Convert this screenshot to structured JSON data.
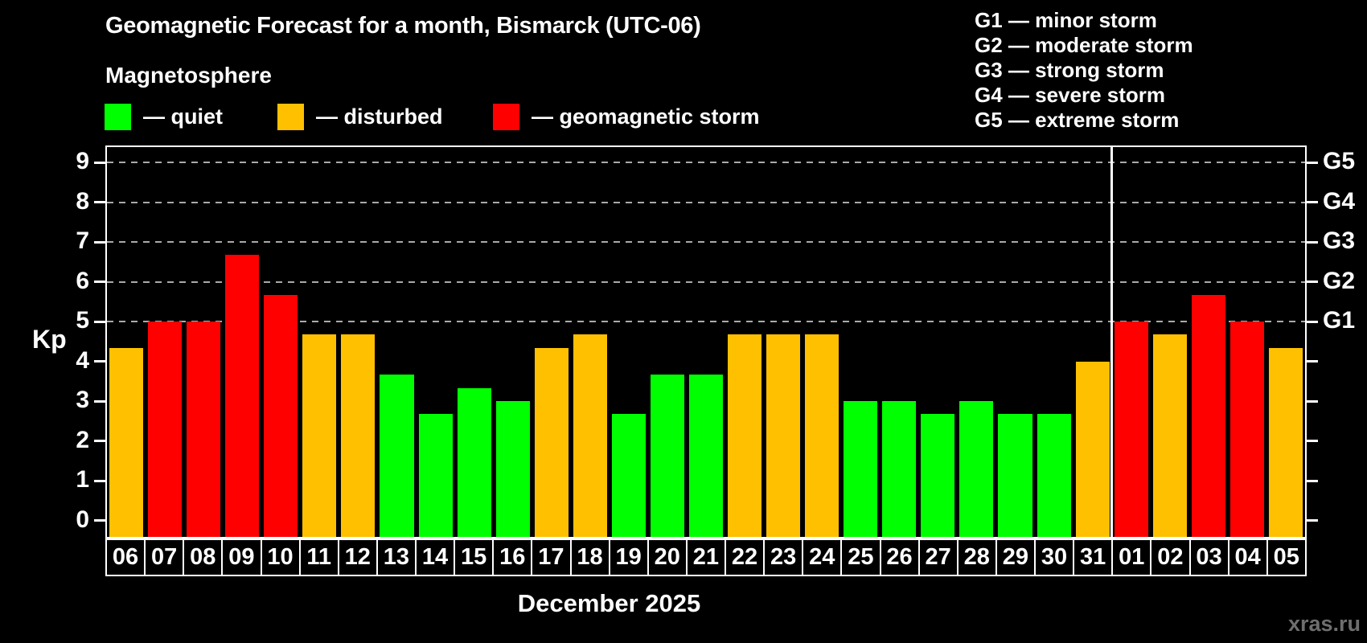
{
  "header": {
    "title": "Geomagnetic Forecast for a month, Bismarck (UTC-06)",
    "subtitle": "Magnetosphere"
  },
  "legend": {
    "items": [
      {
        "label": "— quiet",
        "level": "quiet"
      },
      {
        "label": "— disturbed",
        "level": "disturbed"
      },
      {
        "label": "— geomagnetic storm",
        "level": "storm"
      }
    ]
  },
  "g_legend": {
    "items": [
      "G1 — minor storm",
      "G2 — moderate storm",
      "G3 — strong storm",
      "G4 — severe storm",
      "G5 — extreme storm"
    ]
  },
  "colors": {
    "quiet": "#00ff00",
    "disturbed": "#ffc000",
    "storm": "#ff0000",
    "grid": "#aaaaaa",
    "axis": "#ffffff",
    "watermark": "#6e6e6e"
  },
  "watermark": "xras.ru",
  "chart_data": {
    "type": "bar",
    "title": "Geomagnetic Forecast for a month, Bismarck (UTC-06)",
    "ylabel": "Kp",
    "month_label": "December 2025",
    "ylim": [
      0,
      9
    ],
    "y_ticks": [
      0,
      1,
      2,
      3,
      4,
      5,
      6,
      7,
      8,
      9
    ],
    "gridlines_at": [
      5,
      6,
      7,
      8,
      9
    ],
    "right_axis_labels": [
      {
        "value": 9,
        "label": "G5"
      },
      {
        "value": 8,
        "label": "G4"
      },
      {
        "value": 7,
        "label": "G3"
      },
      {
        "value": 6,
        "label": "G2"
      },
      {
        "value": 5,
        "label": "G1"
      }
    ],
    "separator_after_index": 25,
    "days": [
      {
        "label": "06",
        "value": 4.33,
        "level": "disturbed"
      },
      {
        "label": "07",
        "value": 5,
        "level": "storm"
      },
      {
        "label": "08",
        "value": 5,
        "level": "storm"
      },
      {
        "label": "09",
        "value": 6.67,
        "level": "storm"
      },
      {
        "label": "10",
        "value": 5.67,
        "level": "storm"
      },
      {
        "label": "11",
        "value": 4.67,
        "level": "disturbed"
      },
      {
        "label": "12",
        "value": 4.67,
        "level": "disturbed"
      },
      {
        "label": "13",
        "value": 3.67,
        "level": "quiet"
      },
      {
        "label": "14",
        "value": 2.67,
        "level": "quiet"
      },
      {
        "label": "15",
        "value": 3.33,
        "level": "quiet"
      },
      {
        "label": "16",
        "value": 3,
        "level": "quiet"
      },
      {
        "label": "17",
        "value": 4.33,
        "level": "disturbed"
      },
      {
        "label": "18",
        "value": 4.67,
        "level": "disturbed"
      },
      {
        "label": "19",
        "value": 2.67,
        "level": "quiet"
      },
      {
        "label": "20",
        "value": 3.67,
        "level": "quiet"
      },
      {
        "label": "21",
        "value": 3.67,
        "level": "quiet"
      },
      {
        "label": "22",
        "value": 4.67,
        "level": "disturbed"
      },
      {
        "label": "23",
        "value": 4.67,
        "level": "disturbed"
      },
      {
        "label": "24",
        "value": 4.67,
        "level": "disturbed"
      },
      {
        "label": "25",
        "value": 3,
        "level": "quiet"
      },
      {
        "label": "26",
        "value": 3,
        "level": "quiet"
      },
      {
        "label": "27",
        "value": 2.67,
        "level": "quiet"
      },
      {
        "label": "28",
        "value": 3,
        "level": "quiet"
      },
      {
        "label": "29",
        "value": 2.67,
        "level": "quiet"
      },
      {
        "label": "30",
        "value": 2.67,
        "level": "quiet"
      },
      {
        "label": "31",
        "value": 4,
        "level": "disturbed"
      },
      {
        "label": "01",
        "value": 5,
        "level": "storm"
      },
      {
        "label": "02",
        "value": 4.67,
        "level": "disturbed"
      },
      {
        "label": "03",
        "value": 5.67,
        "level": "storm"
      },
      {
        "label": "04",
        "value": 5,
        "level": "storm"
      },
      {
        "label": "05",
        "value": 4.33,
        "level": "disturbed"
      }
    ]
  }
}
